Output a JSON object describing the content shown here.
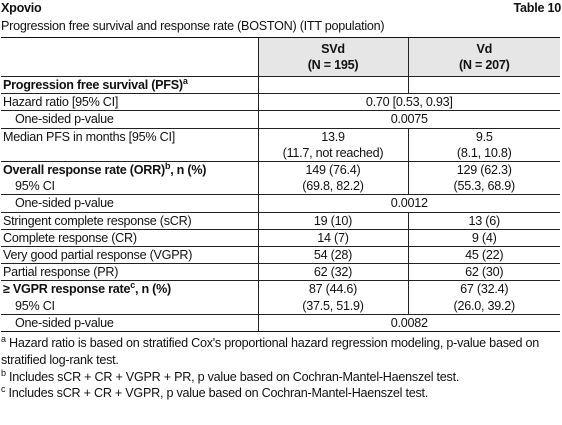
{
  "header": {
    "title": "Xpovio",
    "table_label": "Table 10",
    "subtitle": "Progression free survival and response rate (BOSTON) (ITT population)"
  },
  "table": {
    "columns": [
      {
        "name": "SVd",
        "n": "(N = 195)"
      },
      {
        "name": "Vd",
        "n": "(N = 207)"
      }
    ],
    "rows": [
      {
        "label": "Progression free survival (PFS)",
        "sup": "a",
        "bold": true
      },
      {
        "label": "Hazard ratio [95% CI]",
        "merged": "0.70 [0.53, 0.93]"
      },
      {
        "label": "One-sided p-value",
        "indent": true,
        "merged": "0.0075"
      },
      {
        "label": "Median PFS in months [95% CI]",
        "cells": [
          "13.9",
          "9.5"
        ],
        "continues": true
      },
      {
        "cells": [
          "(11.7, not reached)",
          "(8.1, 10.8)"
        ]
      },
      {
        "label": "Overall response rate (ORR)",
        "sup": "b",
        "label_after": ", n (%)",
        "bold": true,
        "cells": [
          "149 (76.4)",
          "129 (62.3)"
        ],
        "continues": true
      },
      {
        "label": "95% CI",
        "indent": true,
        "cells": [
          "(69.8, 82.2)",
          "(55.3, 68.9)"
        ]
      },
      {
        "label": "One-sided p-value",
        "indent": true,
        "merged": "0.0012"
      },
      {
        "label": "Stringent complete response (sCR)",
        "cells": [
          "19 (10)",
          "13 (6)"
        ]
      },
      {
        "label": "Complete response (CR)",
        "cells": [
          "14 (7)",
          "9 (4)"
        ]
      },
      {
        "label": "Very good partial response (VGPR)",
        "cells": [
          "54 (28)",
          "45 (22)"
        ]
      },
      {
        "label": "Partial response (PR)",
        "cells": [
          "62 (32)",
          "62 (30)"
        ]
      },
      {
        "label": "≥ VGPR response rate",
        "sup": "c",
        "label_after": ", n (%)",
        "bold": true,
        "cells": [
          "87 (44.6)",
          "67 (32.4)"
        ],
        "continues": true
      },
      {
        "label": "95% CI",
        "indent": true,
        "cells": [
          "(37.5, 51.9)",
          "(26.0, 39.2)"
        ]
      },
      {
        "label": "One-sided p-value",
        "indent": true,
        "merged": "0.0082"
      }
    ]
  },
  "footnotes": [
    {
      "mark": "a",
      "text": "Hazard ratio is based on stratified Cox's proportional hazard regression modeling, p-value based on stratified log-rank test."
    },
    {
      "mark": "b",
      "text": "Includes sCR + CR + VGPR + PR, p value based on Cochran-Mantel-Haenszel test."
    },
    {
      "mark": "c",
      "text": "Includes sCR + CR + VGPR, p value based on Cochran-Mantel-Haenszel test."
    }
  ]
}
